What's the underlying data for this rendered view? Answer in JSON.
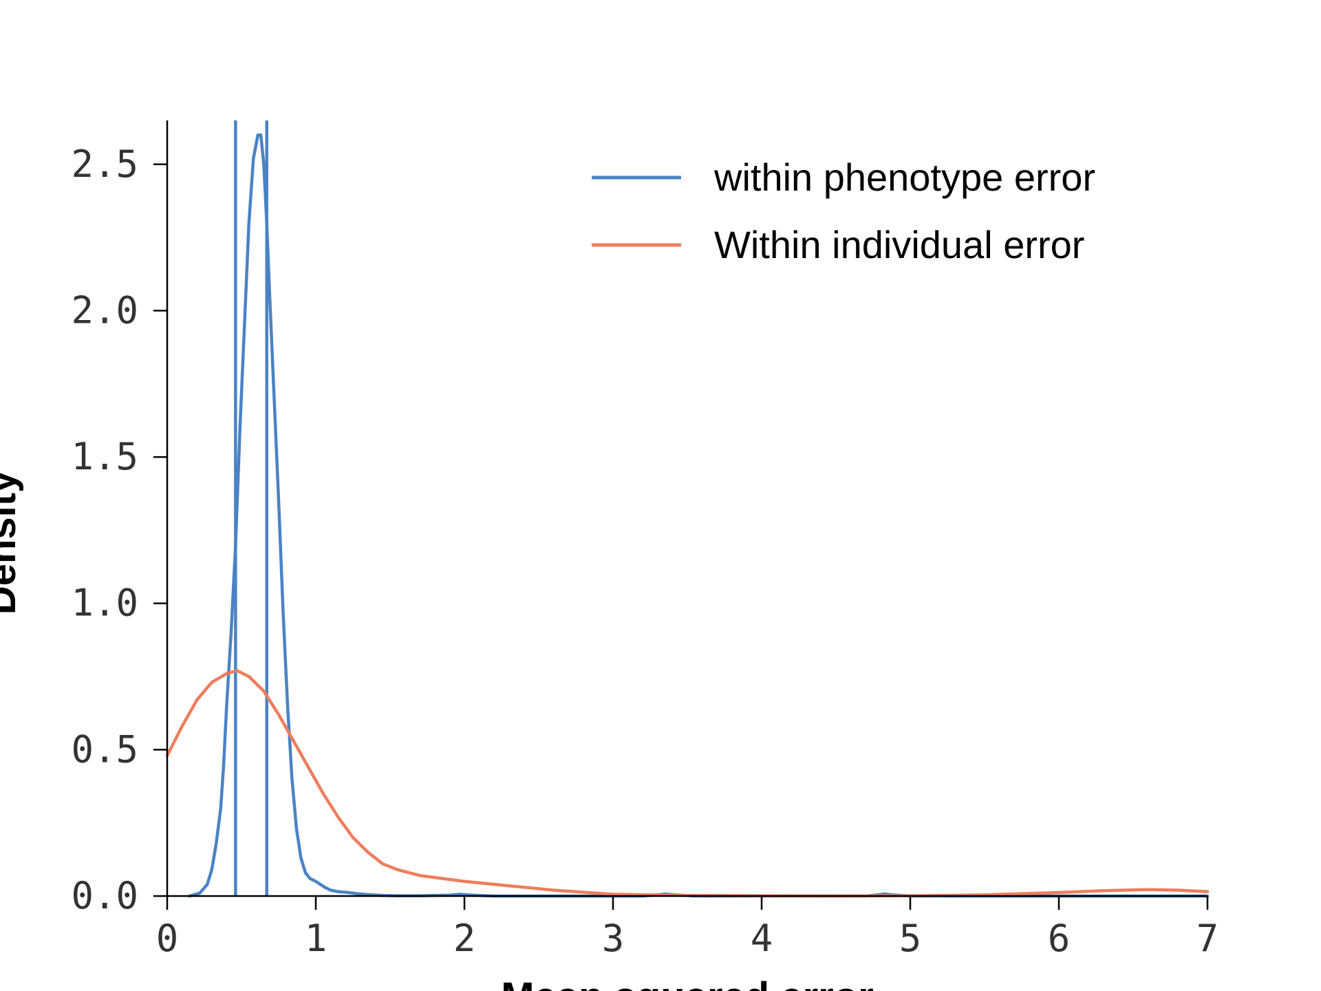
{
  "chart_data": {
    "type": "line",
    "xlabel": "Mean squared error",
    "ylabel": "Density",
    "xlim": [
      0,
      7
    ],
    "ylim": [
      0,
      2.65
    ],
    "xticks": [
      0,
      1,
      2,
      3,
      4,
      5,
      6,
      7
    ],
    "xtick_labels": [
      "0",
      "1",
      "2",
      "3",
      "4",
      "5",
      "6",
      "7"
    ],
    "yticks": [
      0.0,
      0.5,
      1.0,
      1.5,
      2.0,
      2.5
    ],
    "ytick_labels": [
      "0.0",
      "0.5",
      "1.0",
      "1.5",
      "2.0",
      "2.5"
    ],
    "grid": false,
    "legend_position": "top-right",
    "series": [
      {
        "name": "within phenotype error",
        "color": "#4a83c4",
        "x": [
          0.15,
          0.22,
          0.27,
          0.3,
          0.33,
          0.36,
          0.38,
          0.4,
          0.43,
          0.46,
          0.49,
          0.52,
          0.55,
          0.58,
          0.61,
          0.63,
          0.65,
          0.67,
          0.69,
          0.72,
          0.75,
          0.78,
          0.81,
          0.84,
          0.87,
          0.9,
          0.93,
          0.96,
          1.0,
          1.03,
          1.06,
          1.1,
          1.15,
          1.22,
          1.28,
          1.35,
          1.45,
          1.55,
          1.7,
          1.9,
          1.97,
          2.05,
          2.2,
          2.6,
          3.2,
          3.3,
          3.35,
          3.42,
          3.55,
          4.0,
          4.7,
          4.78,
          4.83,
          4.88,
          5.0,
          6.0,
          7.0
        ],
        "y": [
          0.0,
          0.01,
          0.04,
          0.09,
          0.18,
          0.3,
          0.45,
          0.65,
          0.9,
          1.2,
          1.6,
          1.95,
          2.3,
          2.52,
          2.6,
          2.6,
          2.5,
          2.3,
          2.05,
          1.7,
          1.35,
          0.97,
          0.65,
          0.4,
          0.23,
          0.13,
          0.08,
          0.06,
          0.05,
          0.04,
          0.03,
          0.02,
          0.015,
          0.012,
          0.008,
          0.005,
          0.002,
          0.001,
          0.001,
          0.003,
          0.006,
          0.003,
          0.0,
          0.0,
          0.0,
          0.004,
          0.007,
          0.004,
          0.0,
          0.0,
          0.0,
          0.004,
          0.007,
          0.004,
          0.0,
          0.0,
          0.0
        ],
        "vertical_lines": [
          0.46,
          0.67
        ]
      },
      {
        "name": "Within individual error",
        "color": "#ee7d5c",
        "x": [
          0.0,
          0.1,
          0.2,
          0.3,
          0.4,
          0.47,
          0.55,
          0.65,
          0.75,
          0.85,
          0.95,
          1.05,
          1.15,
          1.25,
          1.35,
          1.45,
          1.55,
          1.7,
          1.85,
          2.0,
          2.3,
          2.6,
          3.0,
          3.5,
          4.0,
          4.5,
          5.0,
          5.5,
          6.0,
          6.3,
          6.6,
          6.8,
          7.0
        ],
        "y": [
          0.48,
          0.58,
          0.67,
          0.73,
          0.76,
          0.77,
          0.75,
          0.7,
          0.62,
          0.53,
          0.44,
          0.35,
          0.27,
          0.2,
          0.15,
          0.11,
          0.09,
          0.07,
          0.06,
          0.05,
          0.035,
          0.02,
          0.006,
          0.002,
          0.001,
          0.0,
          0.001,
          0.004,
          0.012,
          0.018,
          0.022,
          0.02,
          0.015
        ]
      }
    ]
  }
}
